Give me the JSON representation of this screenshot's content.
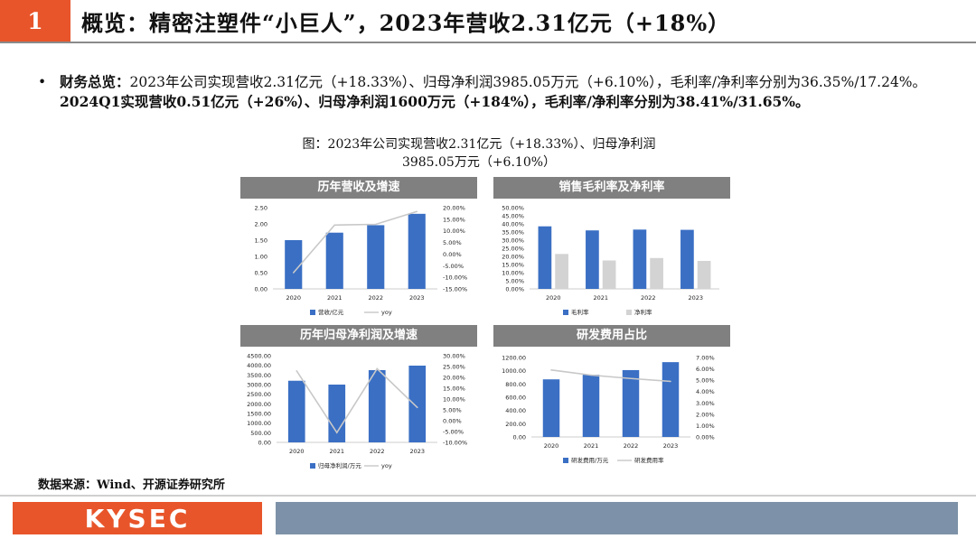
{
  "header": {
    "number": "1",
    "title": "概览：精密注塑件“小巨人”，2023年营收2.31亿元（+18%）"
  },
  "summary": {
    "bullet": "•",
    "lead": "财务总览：",
    "text1": "2023年公司实现营收2.31亿元（+18.33%）、归母净利润3985.05万元（+6.10%），毛利率/净利率分别为36.35%/17.24%。",
    "text2_bold": "2024Q1实现营收0.51亿元（+26%）、归母净利润1600万元（+184%），毛利率/净利率分别为38.41%/31.65%。"
  },
  "figure_caption": {
    "line1": "图：2023年公司实现营收2.31亿元（+18.33%）、归母净利润",
    "line2": "3985.05万元（+6.10%）"
  },
  "colors": {
    "accent": "#e8552a",
    "bar": "#3a6fc4",
    "bar2": "#d3d3d3",
    "line": "#c8c8c8",
    "header": "#808080"
  },
  "chart_data": [
    {
      "type": "bar",
      "title": "历年营收及增速",
      "categories": [
        "2020",
        "2021",
        "2022",
        "2023"
      ],
      "series": [
        {
          "name": "营收/亿元",
          "values": [
            1.5,
            1.73,
            1.96,
            2.31
          ],
          "axis": "left",
          "kind": "bar"
        },
        {
          "name": "yoy",
          "values": [
            -8.0,
            12.5,
            12.8,
            18.33
          ],
          "axis": "right",
          "kind": "line"
        }
      ],
      "left_ticks": [
        "2.50",
        "2.00",
        "1.50",
        "1.00",
        "0.50",
        "0.00"
      ],
      "right_ticks": [
        "20.00%",
        "15.00%",
        "10.00%",
        "5.00%",
        "0.00%",
        "-5.00%",
        "-10.00%",
        "-15.00%"
      ],
      "ylim": [
        0,
        2.5
      ],
      "y2lim": [
        -15,
        20
      ]
    },
    {
      "type": "bar",
      "title": "销售毛利率及净利率",
      "categories": [
        "2020",
        "2021",
        "2022",
        "2023"
      ],
      "series": [
        {
          "name": "毛利率",
          "values": [
            38.5,
            36.0,
            36.5,
            36.35
          ],
          "kind": "bar"
        },
        {
          "name": "净利率",
          "values": [
            21.5,
            17.5,
            19.0,
            17.24
          ],
          "kind": "bar"
        }
      ],
      "left_ticks": [
        "50.00%",
        "45.00%",
        "40.00%",
        "35.00%",
        "30.00%",
        "25.00%",
        "20.00%",
        "15.00%",
        "10.00%",
        "5.00%",
        "0.00%"
      ],
      "ylim": [
        0,
        50
      ]
    },
    {
      "type": "bar",
      "title": "历年归母净利润及增速",
      "categories": [
        "2020",
        "2021",
        "2022",
        "2023"
      ],
      "series": [
        {
          "name": "归母净利润/万元",
          "values": [
            3200,
            3000,
            3750,
            3985.05
          ],
          "axis": "left",
          "kind": "bar"
        },
        {
          "name": "yoy",
          "values": [
            23.0,
            -5.5,
            24.0,
            6.1
          ],
          "axis": "right",
          "kind": "line"
        }
      ],
      "left_ticks": [
        "4500.00",
        "4000.00",
        "3500.00",
        "3000.00",
        "2500.00",
        "2000.00",
        "1500.00",
        "1000.00",
        "500.00",
        "0.00"
      ],
      "right_ticks": [
        "30.00%",
        "25.00%",
        "20.00%",
        "15.00%",
        "10.00%",
        "5.00%",
        "0.00%",
        "-5.00%",
        "-10.00%"
      ],
      "ylim": [
        0,
        4500
      ],
      "y2lim": [
        -10,
        30
      ]
    },
    {
      "type": "bar",
      "title": "研发费用占比",
      "categories": [
        "2020",
        "2021",
        "2022",
        "2023"
      ],
      "series": [
        {
          "name": "研发费用/万元",
          "values": [
            870,
            940,
            1010,
            1130
          ],
          "axis": "left",
          "kind": "bar"
        },
        {
          "name": "研发费用率",
          "values": [
            5.9,
            5.45,
            5.15,
            4.9
          ],
          "axis": "right",
          "kind": "line"
        }
      ],
      "left_ticks": [
        "1200.00",
        "1000.00",
        "800.00",
        "600.00",
        "400.00",
        "200.00",
        "0.00"
      ],
      "right_ticks": [
        "7.00%",
        "6.00%",
        "5.00%",
        "4.00%",
        "3.00%",
        "2.00%",
        "1.00%",
        "0.00%"
      ],
      "ylim": [
        0,
        1200
      ],
      "y2lim": [
        0,
        7
      ]
    }
  ],
  "footer": {
    "source": "数据来源：Wind、开源证券研究所",
    "logo": "KYSEC"
  }
}
